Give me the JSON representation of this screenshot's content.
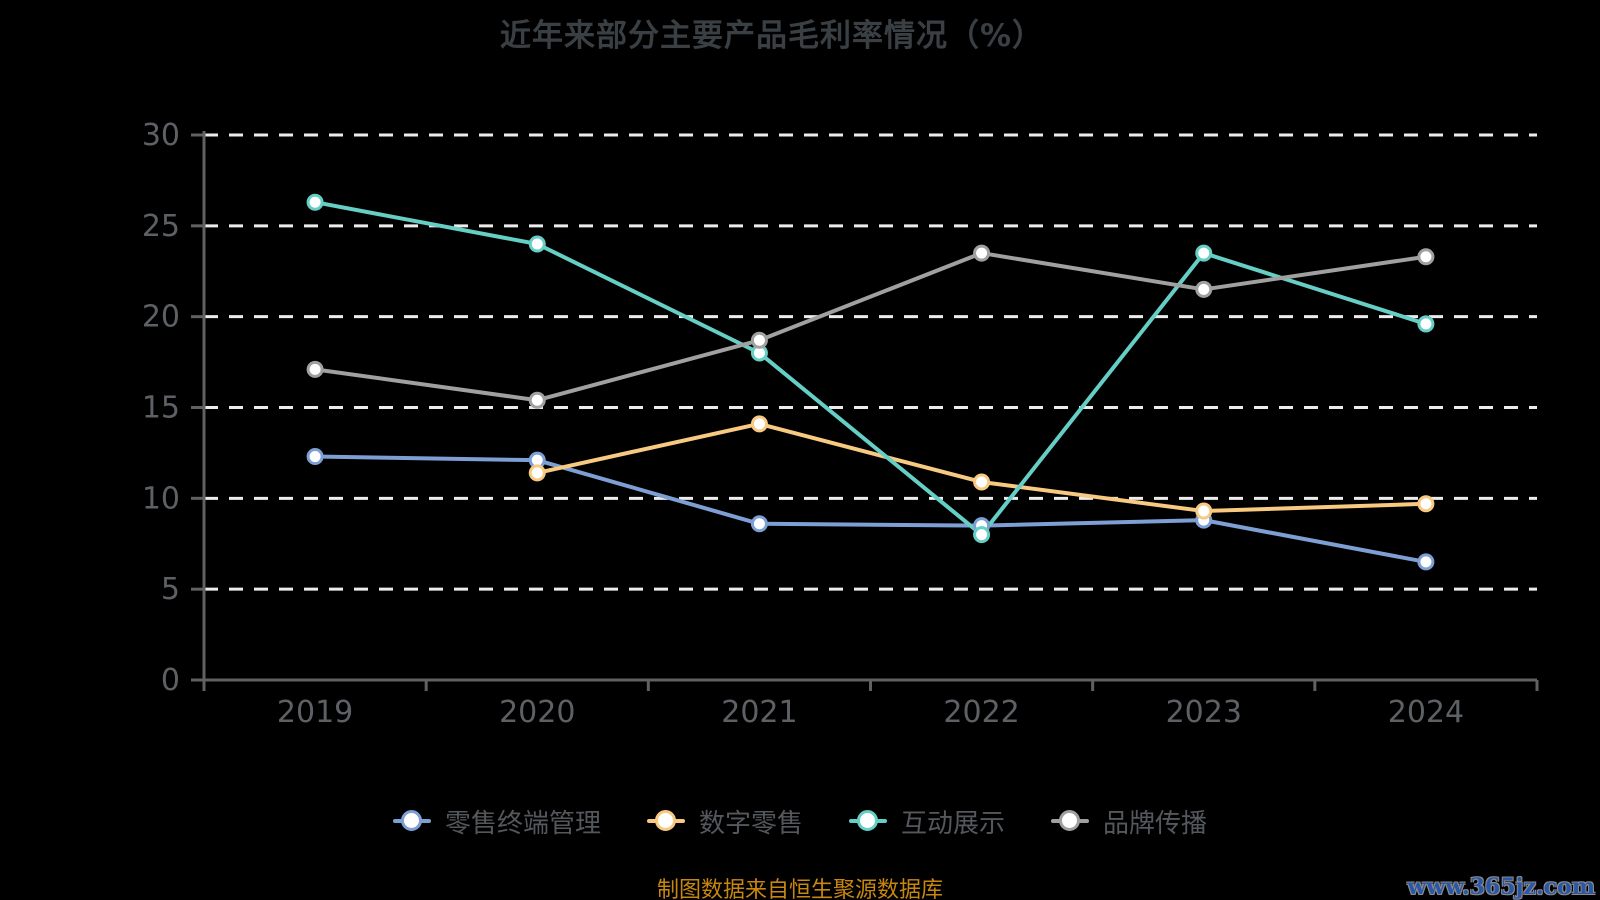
{
  "page": {
    "title": "近年来部分主要产品毛利率情况（%）"
  },
  "footer": {
    "source_note": "制图数据来自恒生聚源数据库",
    "watermark": "www.365jz.com"
  },
  "colors": {
    "background": "#000000",
    "gridline": "#ececec",
    "axis": "#616161",
    "axis_label": "#5d6165",
    "title": "#3a3f44",
    "legend_text": "#54585c",
    "source_note": "#c8870d",
    "watermark": "#2b57a8"
  },
  "chart_data": {
    "type": "line",
    "title": "近年来部分主要产品毛利率情况（%）",
    "categories": [
      "2019",
      "2020",
      "2021",
      "2022",
      "2023",
      "2024"
    ],
    "series": [
      {
        "name": "零售终端管理",
        "color": "#7d9fd4",
        "values": [
          12.3,
          12.1,
          8.6,
          8.5,
          8.8,
          6.5
        ]
      },
      {
        "name": "数字零售",
        "color": "#f8c980",
        "values": [
          null,
          11.4,
          14.1,
          10.9,
          9.3,
          9.7
        ]
      },
      {
        "name": "互动展示",
        "color": "#65cec5",
        "values": [
          26.3,
          24.0,
          18.0,
          8.0,
          23.5,
          19.6
        ]
      },
      {
        "name": "品牌传播",
        "color": "#a0a0a0",
        "values": [
          17.1,
          15.4,
          18.7,
          23.5,
          21.5,
          23.3
        ]
      }
    ],
    "xlabel": "",
    "ylabel": "",
    "ylim": [
      0,
      30
    ],
    "yticks": [
      0,
      5,
      10,
      15,
      20,
      25,
      30
    ],
    "grid": "horizontal-dashed-white",
    "legend_position": "bottom",
    "marker": "circle-white-fill-colored-ring"
  }
}
